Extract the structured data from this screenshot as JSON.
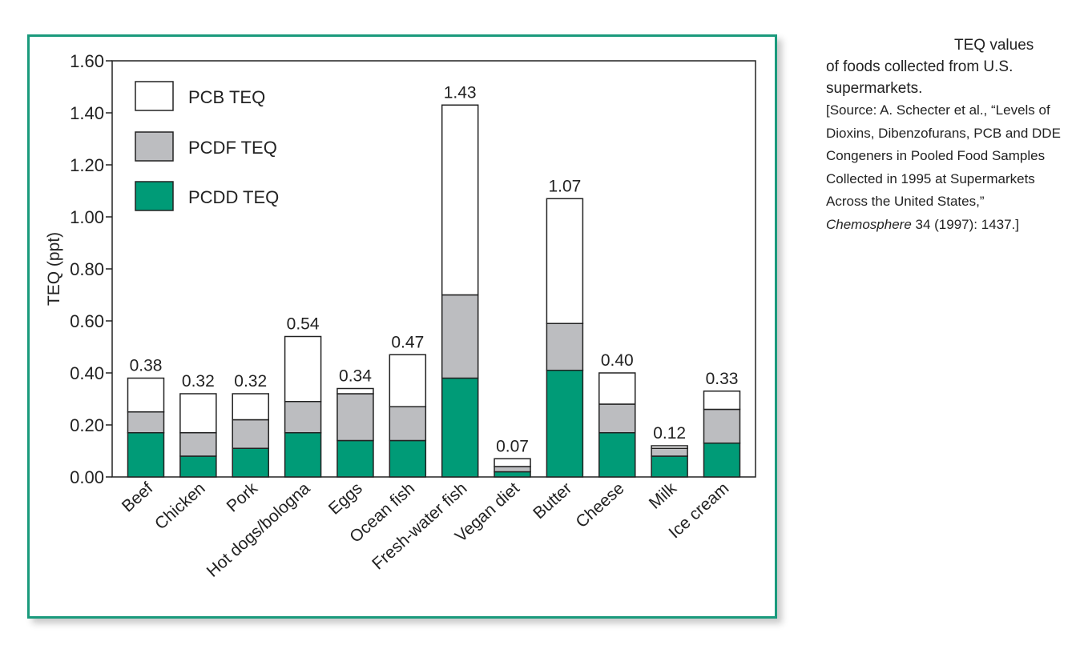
{
  "chart_data": {
    "type": "bar",
    "stacked": true,
    "title": "",
    "xlabel": "",
    "ylabel": "TEQ (ppt)",
    "ylim": [
      0,
      1.6
    ],
    "yticks": [
      "0.00",
      "0.20",
      "0.40",
      "0.60",
      "0.80",
      "1.00",
      "1.20",
      "1.40",
      "1.60"
    ],
    "grid": false,
    "legend_position": "top-left",
    "categories": [
      "Beef",
      "Chicken",
      "Pork",
      "Hot dogs/bologna",
      "Eggs",
      "Ocean fish",
      "Fresh-water fish",
      "Vegan diet",
      "Butter",
      "Cheese",
      "Milk",
      "Ice cream"
    ],
    "series": [
      {
        "name": "PCDD TEQ",
        "color": "#009b77",
        "values": [
          0.17,
          0.08,
          0.11,
          0.17,
          0.14,
          0.14,
          0.38,
          0.02,
          0.41,
          0.17,
          0.08,
          0.13
        ]
      },
      {
        "name": "PCDF TEQ",
        "color": "#bcbdc0",
        "values": [
          0.08,
          0.09,
          0.11,
          0.12,
          0.18,
          0.13,
          0.32,
          0.02,
          0.18,
          0.11,
          0.03,
          0.13
        ]
      },
      {
        "name": "PCB TEQ",
        "color": "#ffffff",
        "values": [
          0.13,
          0.15,
          0.1,
          0.25,
          0.02,
          0.2,
          0.73,
          0.03,
          0.48,
          0.12,
          0.01,
          0.07
        ]
      }
    ],
    "legend_order": [
      "PCB TEQ",
      "PCDF TEQ",
      "PCDD TEQ"
    ],
    "totals": [
      "0.38",
      "0.32",
      "0.32",
      "0.54",
      "0.34",
      "0.47",
      "1.43",
      "0.07",
      "1.07",
      "0.40",
      "0.12",
      "0.33"
    ]
  },
  "caption": {
    "lead_1": "TEQ values",
    "lead_2": "of foods collected from U.S. supermarkets.",
    "source_1": "[Source: A. Schecter et al., “Levels of Dioxins, Dibenzofurans, PCB and DDE Congeners in Pooled Food Samples Collected in 1995 at Supermarkets Across the United States,”",
    "journal": "Chemosphere",
    "source_2": "34 (1997): 1437.]"
  },
  "colors": {
    "frame": "#1a9a7c",
    "pcdd": "#009b77",
    "pcdf": "#bcbdc0",
    "pcb": "#ffffff"
  }
}
